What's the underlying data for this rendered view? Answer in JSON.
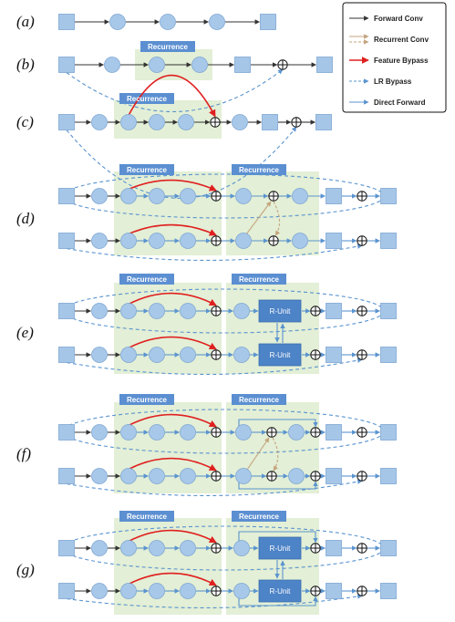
{
  "rows": [
    "(a)",
    "(b)",
    "(c)",
    "(d)",
    "(e)",
    "(f)",
    "(g)"
  ],
  "recurrence_label": "Recurrence",
  "runit_label": "R-Unit",
  "legend": [
    {
      "label": "Forward Conv",
      "style": "forward-conv"
    },
    {
      "label": "Recurrent Conv",
      "style": "recurrent-conv"
    },
    {
      "label": "Feature Bypass",
      "style": "feature-bypass"
    },
    {
      "label": "LR Bypass",
      "style": "lr-bypass"
    },
    {
      "label": "Direct Forward",
      "style": "direct-forward"
    }
  ],
  "colors": {
    "node": "#a8c8ea",
    "node_stroke": "#7da6d2",
    "square": "#a6c6e8",
    "green": "#e3efd6",
    "label_bg": "#5b8fd1",
    "runit": "#4d83c7",
    "forward": "#333333",
    "recurrent": "#c4a57f",
    "bypass": "#e02020",
    "lr": "#5b94cf"
  }
}
